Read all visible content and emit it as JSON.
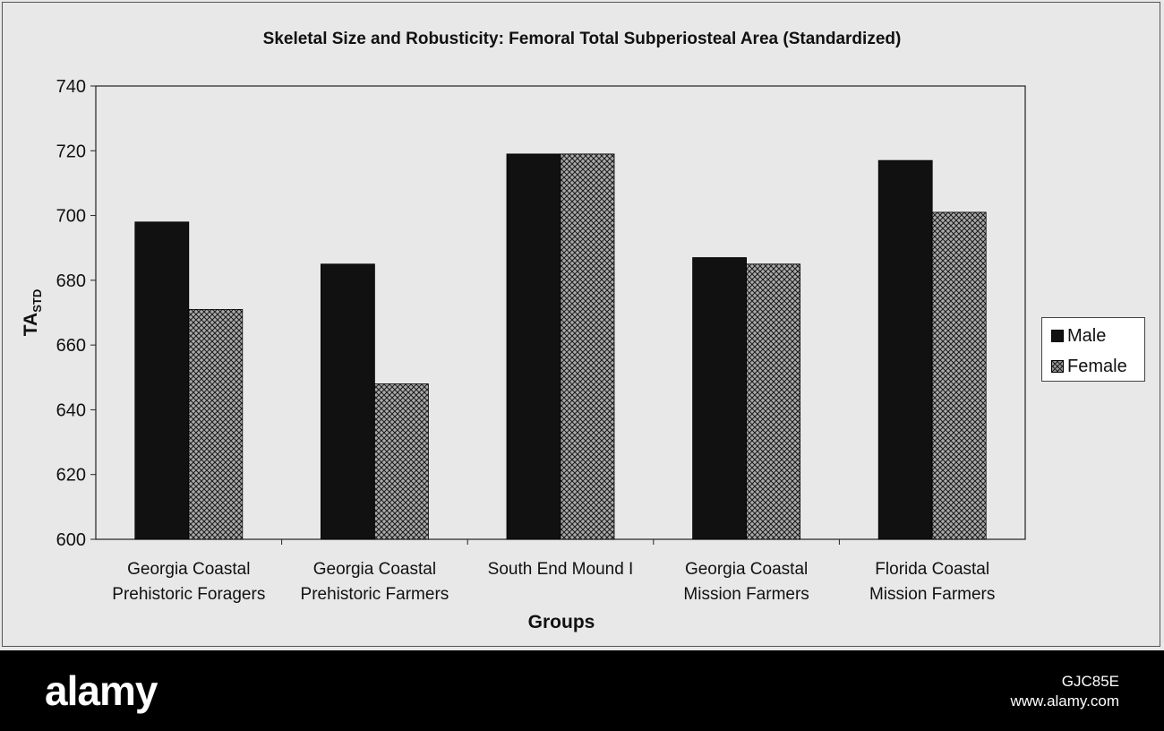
{
  "chart_data": {
    "type": "bar",
    "title": "Skeletal Size and Robusticity:  Femoral Total Subperiosteal Area (Standardized)",
    "xlabel": "Groups",
    "ylabel": "TA",
    "ylabel_subscript": "STD",
    "ylim": [
      600,
      740
    ],
    "yticks": [
      "600",
      "620",
      "640",
      "660",
      "680",
      "700",
      "720",
      "740"
    ],
    "grid": false,
    "legend_position": "right",
    "categories": [
      [
        "Georgia Coastal",
        "Prehistoric Foragers"
      ],
      [
        "Georgia Coastal",
        "Prehistoric Farmers"
      ],
      [
        "South End Mound I"
      ],
      [
        "Georgia Coastal",
        "Mission Farmers"
      ],
      [
        "Florida Coastal",
        "Mission Farmers"
      ]
    ],
    "series": [
      {
        "name": "Male",
        "color": "#111111",
        "pattern": "solid",
        "values": [
          698,
          685,
          719,
          687,
          717
        ]
      },
      {
        "name": "Female",
        "color": "#999999",
        "pattern": "crosshatch",
        "values": [
          671,
          648,
          719,
          685,
          701
        ]
      }
    ]
  },
  "footer": {
    "brand": "alamy",
    "image_code": "GJC85E",
    "site": "www.alamy.com"
  }
}
